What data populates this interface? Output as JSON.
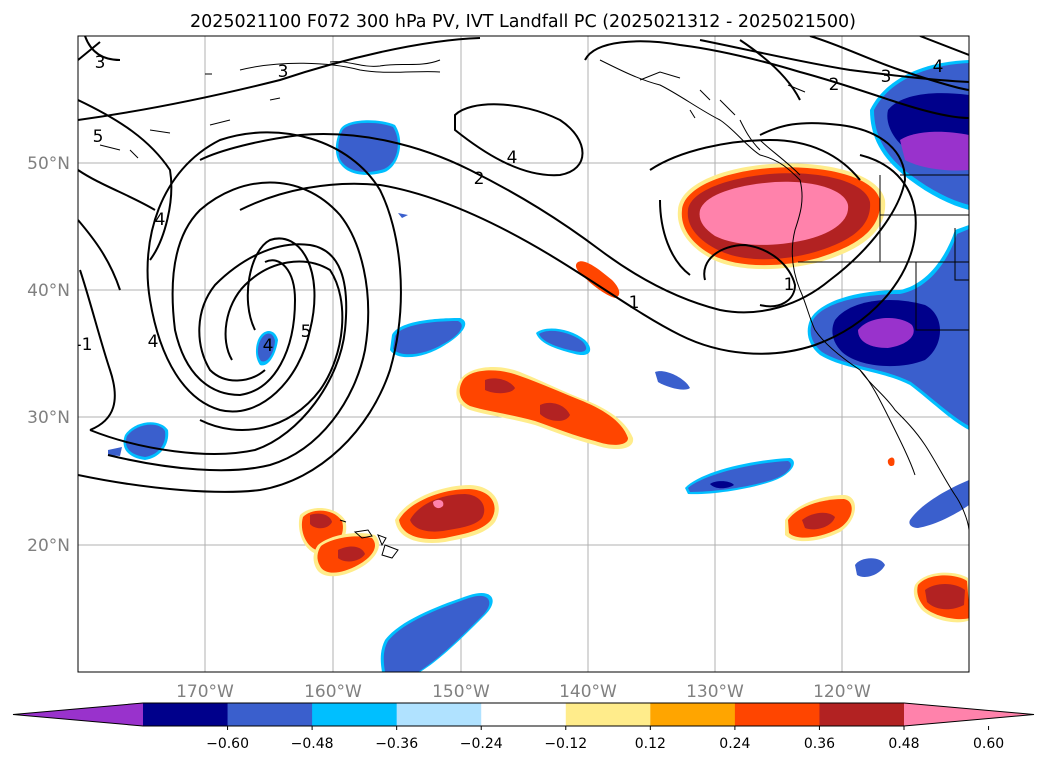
{
  "title": "2025021100 F072 300 hPa PV, IVT Landfall PC (2025021312 - 2025021500)",
  "latitude_labels": [
    "50°N",
    "40°N",
    "30°N",
    "20°N"
  ],
  "longitude_labels": [
    "170°W",
    "160°W",
    "150°W",
    "140°W",
    "130°W",
    "120°W"
  ],
  "contour_labels": [
    "3",
    "5",
    "4",
    "4",
    "5",
    "4",
    "2",
    "4",
    "3",
    "2",
    "3",
    "4",
    "1",
    "1",
    "-1"
  ],
  "colorbar": {
    "ticks": [
      "−0.60",
      "−0.48",
      "−0.36",
      "−0.24",
      "−0.12",
      "0.12",
      "0.24",
      "0.36",
      "0.48",
      "0.60"
    ],
    "colors": [
      "#9932cc",
      "#00008b",
      "#3a5fcd",
      "#00bfff",
      "#b0e2ff",
      "#ffffff",
      "#ffec8b",
      "#ffa500",
      "#ff4500",
      "#b22222",
      "#ff82ab"
    ]
  }
}
